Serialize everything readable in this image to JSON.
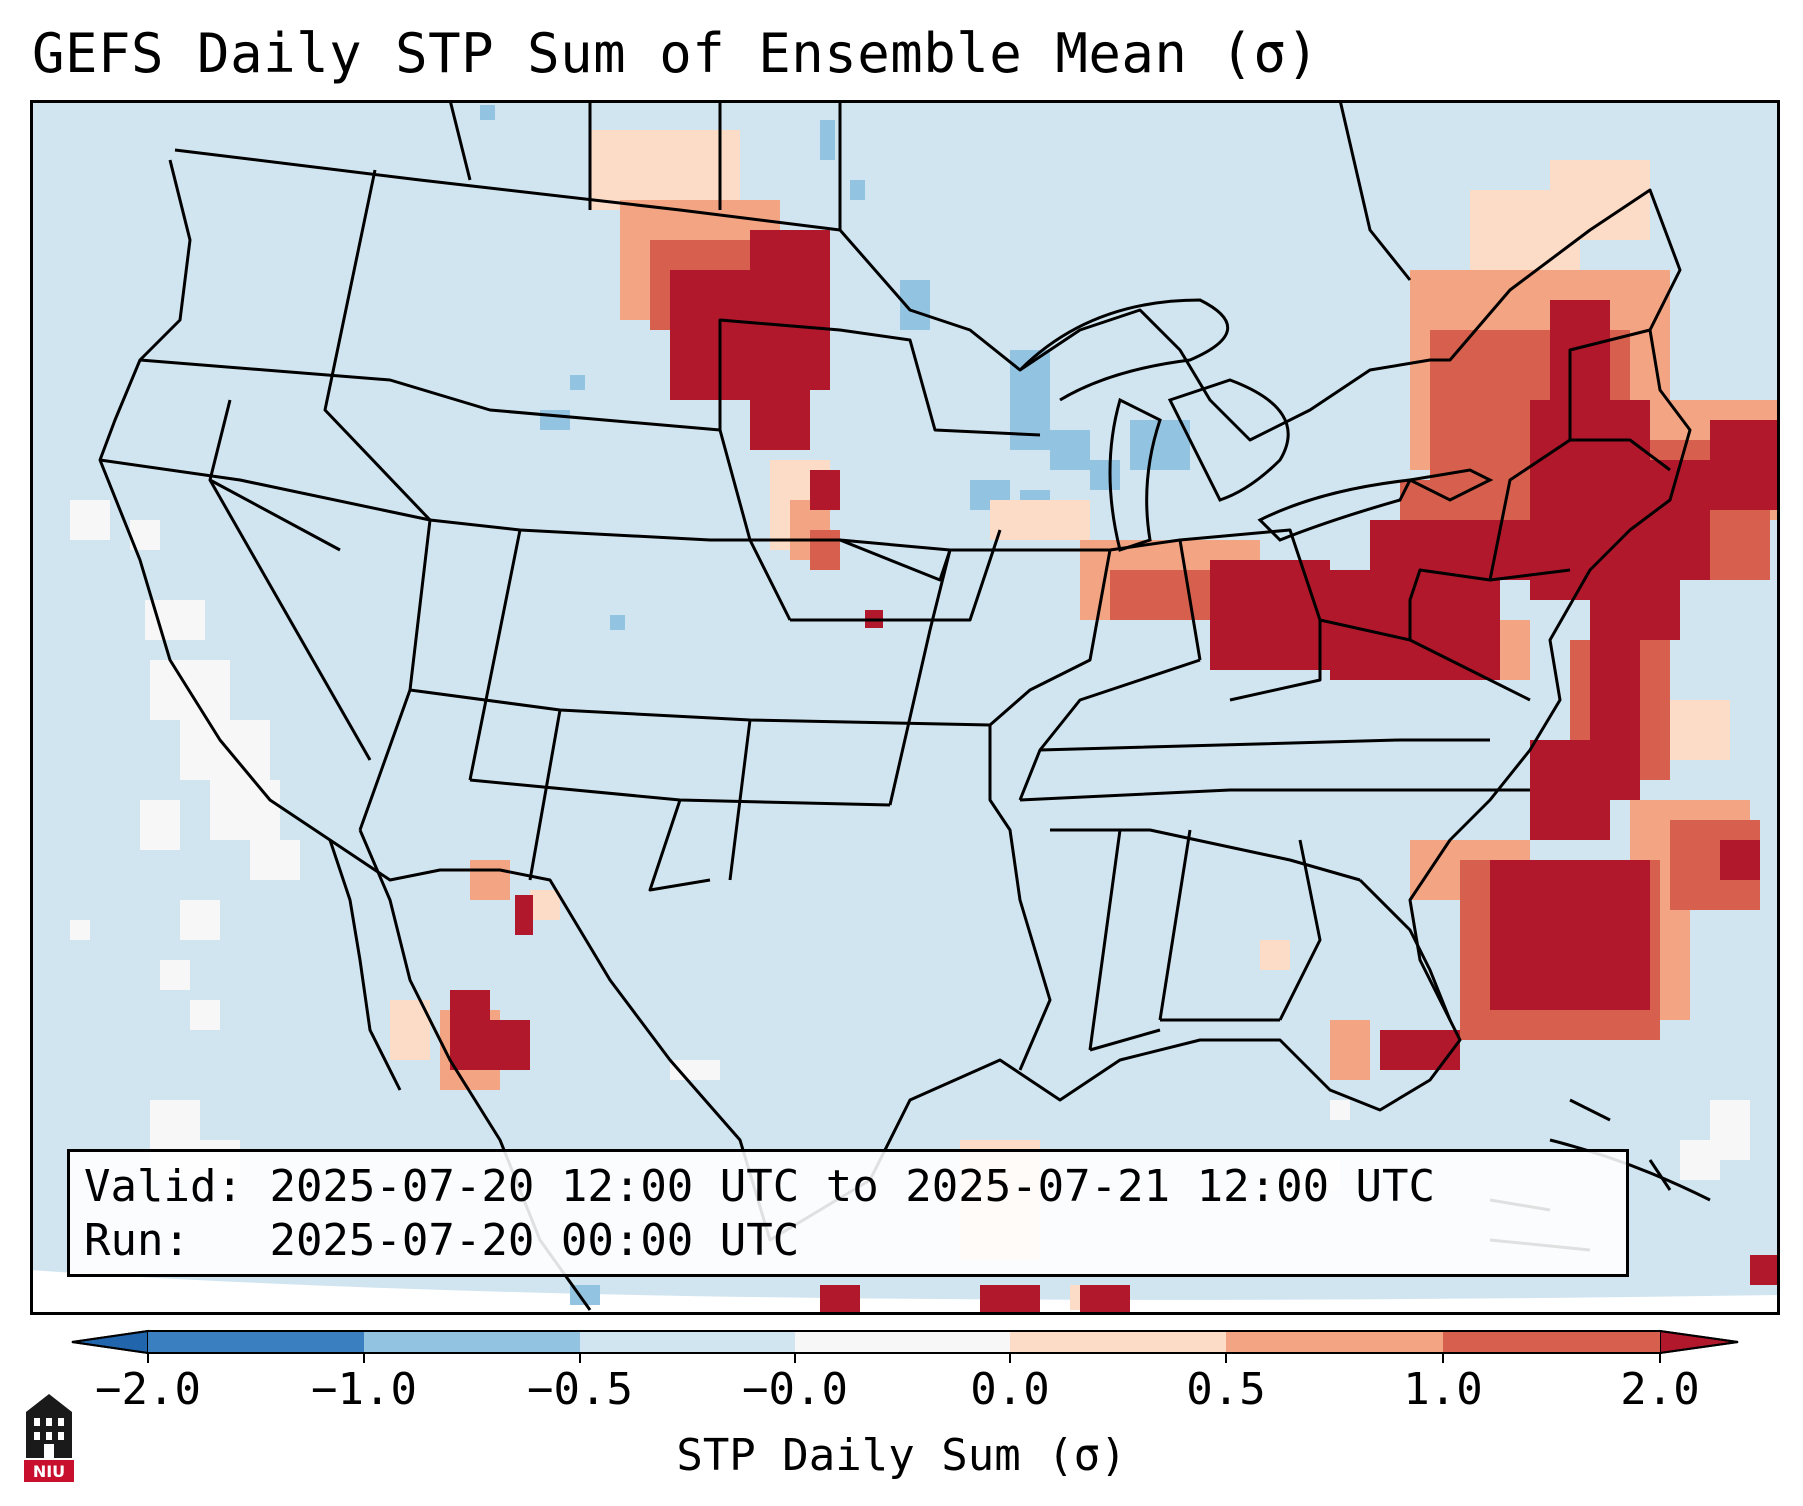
{
  "title": "GEFS Daily STP Sum of Ensemble Mean (σ)",
  "info": {
    "valid_label": "Valid:",
    "valid_value": "2025-07-20 12:00 UTC to 2025-07-21 12:00 UTC",
    "run_label": "Run:",
    "run_value": "2025-07-20 00:00 UTC"
  },
  "colorbar": {
    "title": "STP Daily Sum (σ)",
    "tick_labels": [
      "−2.0",
      "−1.0",
      "−0.5",
      "−0.0",
      "0.0",
      "0.5",
      "1.0",
      "2.0"
    ],
    "bins": [
      {
        "color": "#3a7fbf"
      },
      {
        "color": "#92c3e0"
      },
      {
        "color": "#d1e5f0"
      },
      {
        "color": "#f7f7f7"
      },
      {
        "color": "#fcdbc7"
      },
      {
        "color": "#f3a482"
      },
      {
        "color": "#d6604d"
      }
    ],
    "under_color": "#2166ac",
    "over_color": "#b2182b",
    "extend": "both"
  },
  "map": {
    "background_color": "#d1e5f0",
    "projection": "Lambert Conformal (CONUS)",
    "borders": "states and countries",
    "fields": [
      {
        "region": "Montana / western Dakotas",
        "level": "2.0+",
        "color": "#b2182b"
      },
      {
        "region": "Ohio Valley to Mid-Atlantic and New England",
        "level": "2.0+",
        "color": "#b2182b"
      },
      {
        "region": "Western Atlantic off Carolinas",
        "level": "2.0+",
        "color": "#b2182b"
      },
      {
        "region": "Nebraska",
        "level": "1.0–2.0",
        "color": "#d6604d"
      },
      {
        "region": "Sonora / Chihuahua",
        "level": "2.0+",
        "color": "#b2182b"
      },
      {
        "region": "South Florida",
        "level": "2.0+",
        "color": "#b2182b"
      },
      {
        "region": "Upper Midwest / Great Lakes",
        "level": "−1.0 to −0.5",
        "color": "#92c3e0"
      },
      {
        "region": "Pacific offshore",
        "level": "−0.0 to 0.0",
        "color": "#f7f7f7"
      }
    ]
  },
  "logo": {
    "text": "NIU",
    "color": "#c8102e"
  }
}
